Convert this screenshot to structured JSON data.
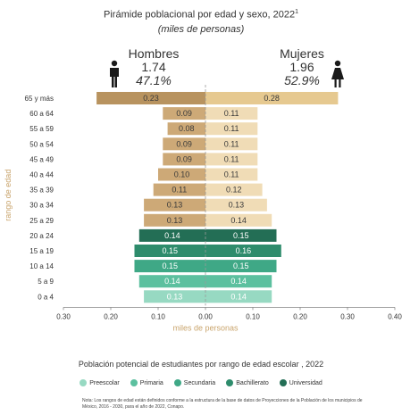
{
  "header": {
    "title": "Pirámide poblacional por edad y sexo, 2022",
    "title_sup": "1",
    "subtitle": "(miles de personas)"
  },
  "men": {
    "label": "Hombres",
    "total": "1.74",
    "percent": "47.1%"
  },
  "women": {
    "label": "Mujeres",
    "total": "1.96",
    "percent": "52.9%"
  },
  "icons": {
    "men": "man-icon",
    "women": "woman-icon"
  },
  "legend": {
    "title": "Población potencial de estudiantes por rango de edad escolar , 2022",
    "items": [
      {
        "label": "Preescolar",
        "color": "#97d9c2"
      },
      {
        "label": "Primaria",
        "color": "#5cc09f"
      },
      {
        "label": "Secundaria",
        "color": "#3fa886"
      },
      {
        "label": "Bachillerato",
        "color": "#2e8c6c"
      },
      {
        "label": "Universidad",
        "color": "#236e55"
      }
    ]
  },
  "note": "Nota: Los rangos de edad están definidos conforme a la estructura de la base de datos de Proyecciones de la Población de los municipios de México, 2016 - 2030, para el año de 2022, Conapo.",
  "colors": {
    "men_bar": "#cda977",
    "men_bar_dark": "#b8935f",
    "women_bar": "#f0dcb6",
    "women_bar_dark": "#e6c990"
  },
  "chart_data": {
    "type": "bar",
    "orientation": "horizontal",
    "ylabel": "rango de edad",
    "xlabel": "miles de personas",
    "xlim": [
      -0.3,
      0.4
    ],
    "xticks": [
      "0.30",
      "0.20",
      "0.10",
      "0.00",
      "0.10",
      "0.20",
      "0.30",
      "0.40"
    ],
    "categories": [
      "65 y más",
      "60 a 64",
      "55 a 59",
      "50 a 54",
      "45 a 49",
      "40 a 44",
      "35 a 39",
      "30 a 34",
      "25 a 29",
      "20 a 24",
      "15 a 19",
      "10 a 14",
      "5 a 9",
      "0 a 4"
    ],
    "series": [
      {
        "name": "Hombres",
        "values": [
          0.23,
          0.09,
          0.08,
          0.09,
          0.09,
          0.1,
          0.11,
          0.13,
          0.13,
          0.14,
          0.15,
          0.15,
          0.14,
          0.13
        ],
        "labels": [
          "0.23",
          "0.09",
          "0.08",
          "0.09",
          "0.09",
          "0.10",
          "0.11",
          "0.13",
          "0.13",
          "0.14",
          "0.15",
          "0.15",
          "0.14",
          "0.13"
        ]
      },
      {
        "name": "Mujeres",
        "values": [
          0.28,
          0.11,
          0.11,
          0.11,
          0.11,
          0.11,
          0.12,
          0.13,
          0.14,
          0.15,
          0.16,
          0.15,
          0.14,
          0.14
        ],
        "labels": [
          "0.28",
          "0.11",
          "0.11",
          "0.11",
          "0.11",
          "0.11",
          "0.12",
          "0.13",
          "0.14",
          "0.15",
          "0.16",
          "0.15",
          "0.14",
          "0.14"
        ]
      }
    ],
    "school_level": [
      "",
      "",
      "",
      "",
      "",
      "",
      "",
      "",
      "",
      "Universidad",
      "Bachillerato",
      "Secundaria",
      "Primaria",
      "Preescolar"
    ]
  }
}
